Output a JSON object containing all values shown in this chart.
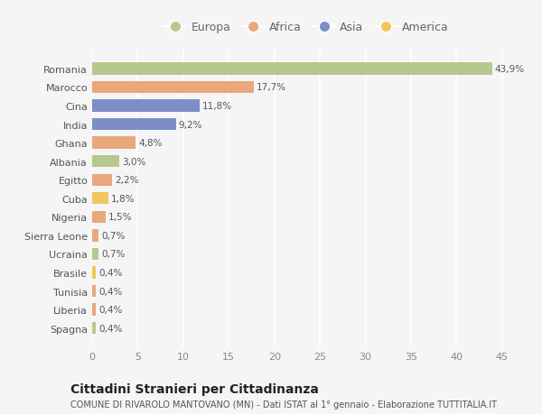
{
  "countries": [
    "Romania",
    "Marocco",
    "Cina",
    "India",
    "Ghana",
    "Albania",
    "Egitto",
    "Cuba",
    "Nigeria",
    "Sierra Leone",
    "Ucraina",
    "Brasile",
    "Tunisia",
    "Liberia",
    "Spagna"
  ],
  "values": [
    43.9,
    17.7,
    11.8,
    9.2,
    4.8,
    3.0,
    2.2,
    1.8,
    1.5,
    0.7,
    0.7,
    0.4,
    0.4,
    0.4,
    0.4
  ],
  "labels": [
    "43,9%",
    "17,7%",
    "11,8%",
    "9,2%",
    "4,8%",
    "3,0%",
    "2,2%",
    "1,8%",
    "1,5%",
    "0,7%",
    "0,7%",
    "0,4%",
    "0,4%",
    "0,4%",
    "0,4%"
  ],
  "continents": [
    "Europa",
    "Africa",
    "Asia",
    "Asia",
    "Africa",
    "Europa",
    "Africa",
    "America",
    "Africa",
    "Africa",
    "Europa",
    "America",
    "Africa",
    "Africa",
    "Europa"
  ],
  "continent_colors": {
    "Europa": "#b5c98e",
    "Africa": "#e8a87c",
    "Asia": "#7b8ec8",
    "America": "#f0c75e"
  },
  "legend_order": [
    "Europa",
    "Africa",
    "Asia",
    "America"
  ],
  "background_color": "#f5f5f5",
  "grid_color": "#ffffff",
  "title": "Cittadini Stranieri per Cittadinanza",
  "subtitle": "COMUNE DI RIVAROLO MANTOVANO (MN) - Dati ISTAT al 1° gennaio - Elaborazione TUTTITALIA.IT",
  "xlim": [
    0,
    47
  ],
  "xticks": [
    0,
    5,
    10,
    15,
    20,
    25,
    30,
    35,
    40,
    45
  ],
  "bar_height": 0.65,
  "label_fontsize": 7.5,
  "ytick_fontsize": 8,
  "xtick_fontsize": 8,
  "legend_fontsize": 9,
  "title_fontsize": 10,
  "subtitle_fontsize": 7
}
